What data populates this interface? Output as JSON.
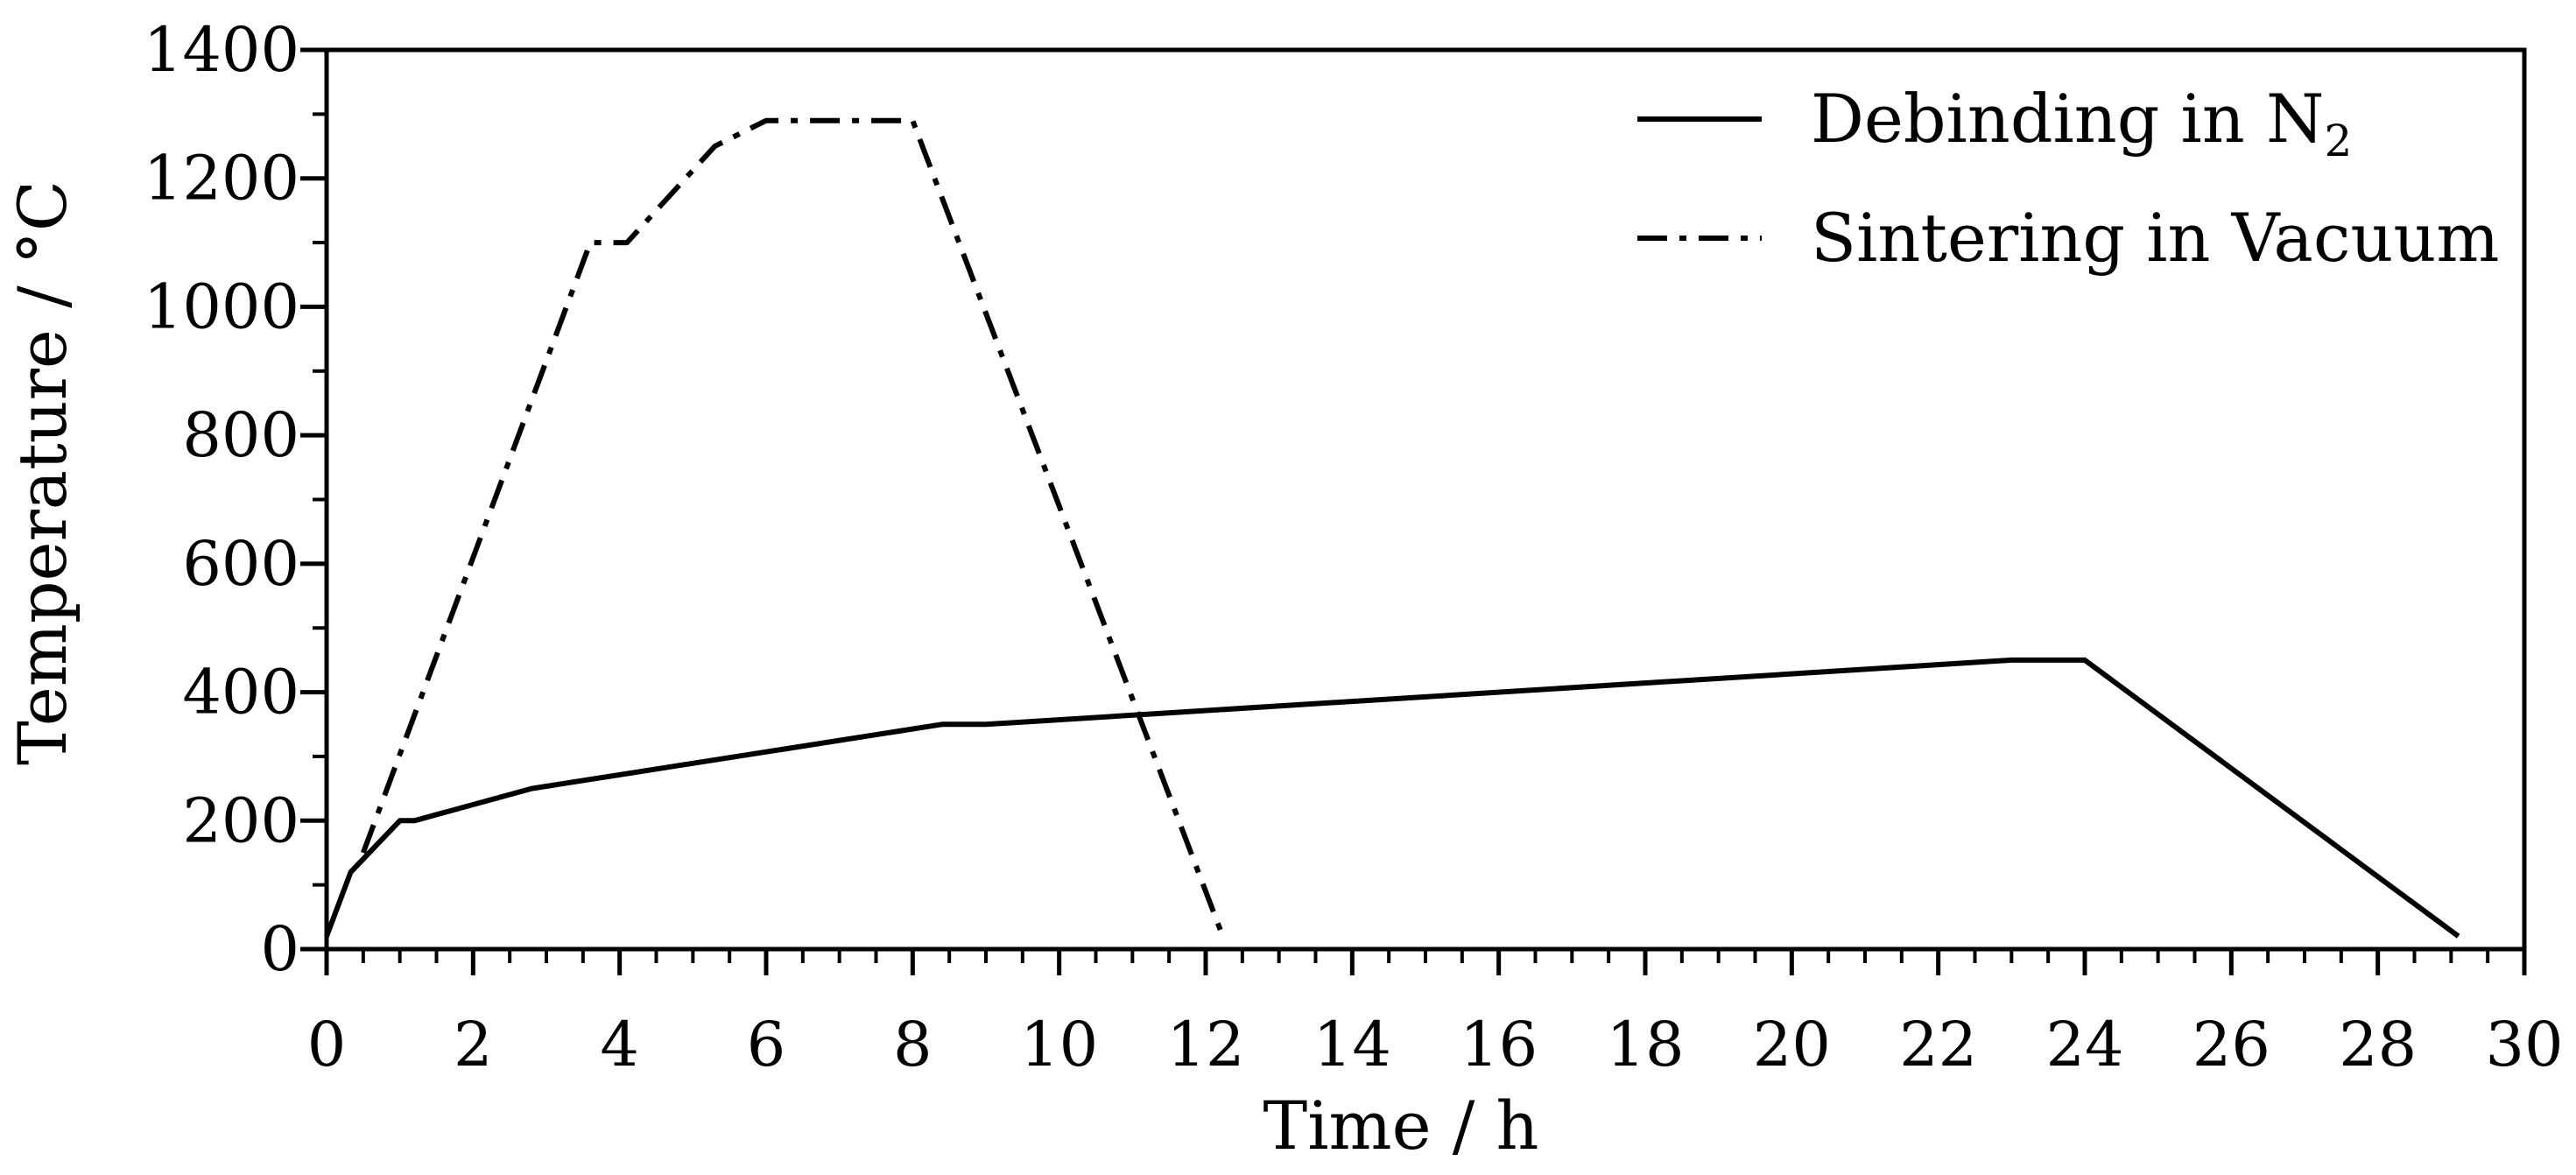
{
  "chart_data": {
    "type": "line",
    "title": "",
    "xlabel": "Time / h",
    "ylabel": "Temperature / °C",
    "xlim": [
      0,
      30
    ],
    "ylim": [
      0,
      1400
    ],
    "xticks": [
      0,
      2,
      4,
      6,
      8,
      10,
      12,
      14,
      16,
      18,
      20,
      22,
      24,
      26,
      28,
      30
    ],
    "yticks": [
      0,
      200,
      400,
      600,
      800,
      1000,
      1200,
      1400
    ],
    "xminor_step": 0.5,
    "yminor_step": 100,
    "grid": false,
    "legend_position": "top-right",
    "series": [
      {
        "name": "Debinding in N2",
        "label_main": "Debinding in N",
        "label_sub": "2",
        "style": "solid",
        "x": [
          0,
          0.33,
          1,
          1.2,
          2.8,
          8.4,
          9,
          23,
          24,
          29.1
        ],
        "y": [
          20,
          120,
          200,
          200,
          250,
          350,
          350,
          450,
          450,
          20
        ]
      },
      {
        "name": "Sintering in Vacuum",
        "label_main": "Sintering in Vacuum",
        "style": "dashdot",
        "x": [
          0.5,
          3.6,
          4.1,
          5.3,
          6,
          8,
          12.2
        ],
        "y": [
          150,
          1100,
          1100,
          1250,
          1290,
          1290,
          30
        ]
      }
    ]
  }
}
